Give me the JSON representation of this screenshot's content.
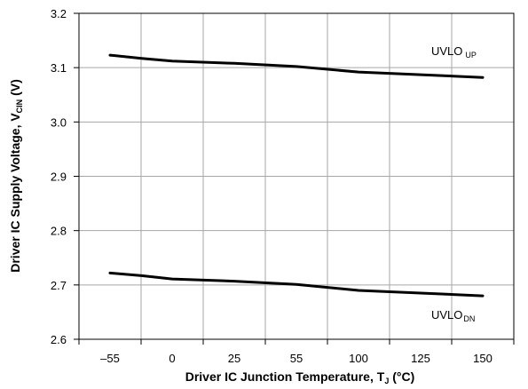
{
  "chart_data": {
    "type": "line",
    "xlabel": {
      "main": "Driver IC Junction Temperature, T",
      "sub": "J",
      "suffix": " (°C)"
    },
    "ylabel": {
      "main": "Driver IC Supply Voltage, V",
      "sub": "CIN",
      "suffix": " (V)"
    },
    "x_ticks": [
      "–55",
      "0",
      "25",
      "55",
      "100",
      "125",
      "150"
    ],
    "y_ticks": [
      "2.6",
      "2.7",
      "2.8",
      "2.9",
      "3.0",
      "3.1",
      "3.2"
    ],
    "ylim": [
      2.6,
      3.2
    ],
    "grid": true,
    "series": [
      {
        "label_main": "UVLO",
        "label_sub": "UP",
        "x": [
          -55,
          -27,
          0,
          25,
          55,
          100,
          125,
          150
        ],
        "y": [
          3.123,
          3.117,
          3.112,
          3.108,
          3.102,
          3.092,
          3.087,
          3.082
        ]
      },
      {
        "label_main": "UVLO",
        "label_sub": "DN",
        "x": [
          -55,
          -27,
          0,
          25,
          55,
          100,
          125,
          150
        ],
        "y": [
          2.722,
          2.717,
          2.711,
          2.707,
          2.701,
          2.69,
          2.685,
          2.68
        ]
      }
    ]
  }
}
